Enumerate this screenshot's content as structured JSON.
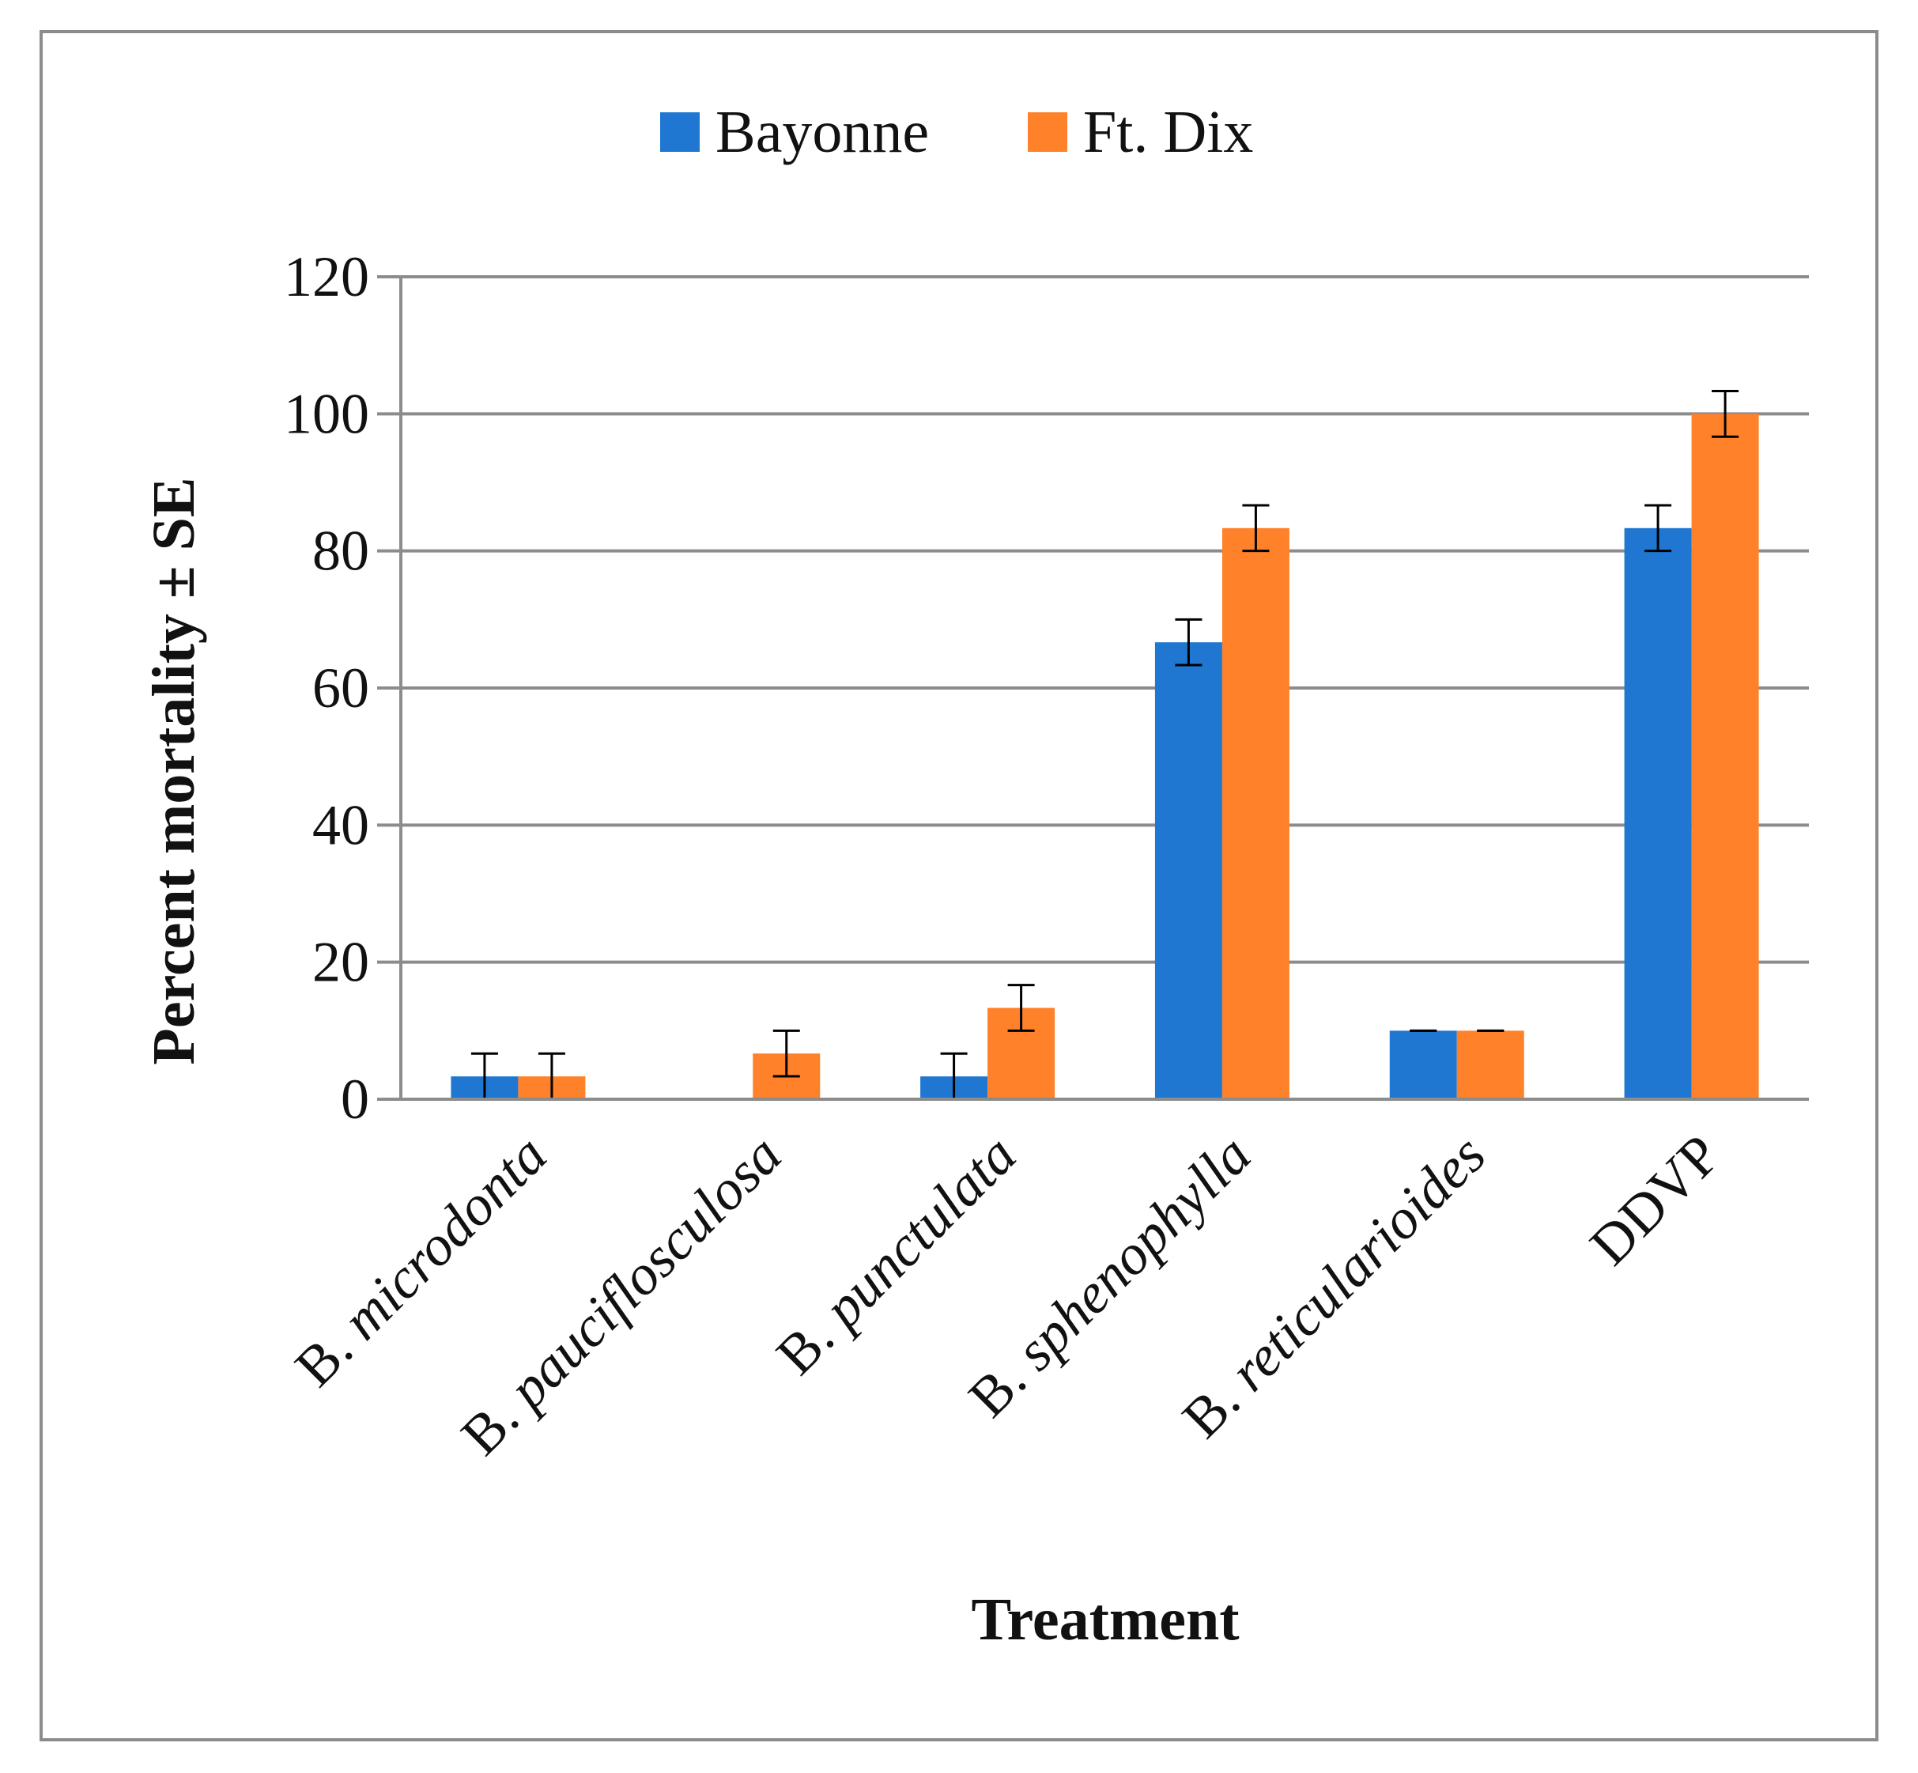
{
  "chart_data": {
    "type": "bar",
    "title": "",
    "xlabel": "Treatment",
    "ylabel": "Percent mortality ± SE",
    "ylim": [
      0,
      120
    ],
    "yticks": [
      "0",
      "20",
      "40",
      "60",
      "80",
      "100",
      "120"
    ],
    "categories": [
      {
        "prefix": "B. ",
        "name": "microdonta",
        "italic": true
      },
      {
        "prefix": "B. ",
        "name": "pauciflosculosa",
        "italic": true
      },
      {
        "prefix": "B. ",
        "name": "punctulata",
        "italic": true
      },
      {
        "prefix": "B. ",
        "name": "sphenophylla",
        "italic": true
      },
      {
        "prefix": "B. ",
        "name": "reticularioides",
        "italic": true
      },
      {
        "prefix": "",
        "name": "DDVP",
        "italic": false
      }
    ],
    "series": [
      {
        "name": "Bayonne",
        "color": "#1f77d2",
        "values": [
          3.33,
          0,
          3.33,
          66.67,
          10,
          83.33
        ],
        "errors": [
          3.33,
          null,
          3.33,
          3.33,
          0,
          3.33
        ]
      },
      {
        "name": "Ft. Dix",
        "color": "#ff8129",
        "values": [
          3.33,
          6.67,
          13.33,
          83.33,
          10,
          100
        ],
        "errors": [
          3.33,
          3.33,
          3.33,
          3.33,
          0,
          3.33
        ]
      }
    ],
    "grid": true,
    "legend": "top-center"
  },
  "colors": {
    "grid": "#8c8c8c",
    "frame": "#8c8c8c",
    "errorbar": "#000000"
  }
}
